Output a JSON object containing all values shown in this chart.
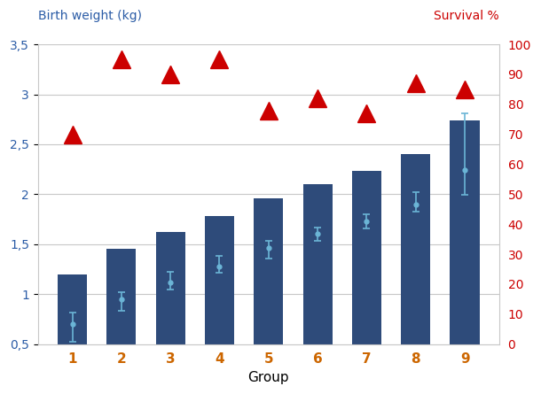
{
  "groups": [
    1,
    2,
    3,
    4,
    5,
    6,
    7,
    8,
    9
  ],
  "bar_heights": [
    0.7,
    0.95,
    1.12,
    1.28,
    1.46,
    1.6,
    1.73,
    1.9,
    2.24
  ],
  "bar_errors_upper": [
    0.12,
    0.07,
    0.1,
    0.1,
    0.07,
    0.07,
    0.07,
    0.12,
    0.57
  ],
  "bar_errors_lower": [
    0.18,
    0.12,
    0.07,
    0.07,
    0.1,
    0.07,
    0.07,
    0.07,
    0.25
  ],
  "bar_color": "#2E4B7A",
  "bar_errorbar_color": "#6BB5D6",
  "survival_values": [
    70,
    95,
    90,
    95,
    78,
    82,
    77,
    87,
    85
  ],
  "survival_color": "#CC0000",
  "left_ylabel": "Birth weight (kg)",
  "right_ylabel": "Survival %",
  "xlabel": "Group",
  "left_ylabel_color": "#2B5CA6",
  "right_ylabel_color": "#CC0000",
  "xtick_color": "#CC6600",
  "ylim_left": [
    0.5,
    3.5
  ],
  "ylim_right": [
    0,
    100
  ],
  "yticks_left": [
    0.5,
    1.0,
    1.5,
    2.0,
    2.5,
    3.0,
    3.5
  ],
  "ytick_labels_left": [
    "0,5",
    "1",
    "1,5",
    "2",
    "2,5",
    "3",
    "3,5"
  ],
  "yticks_right": [
    0,
    10,
    20,
    30,
    40,
    50,
    60,
    70,
    80,
    90,
    100
  ],
  "background_color": "#FFFFFF",
  "grid_color": "#C8C8C8"
}
